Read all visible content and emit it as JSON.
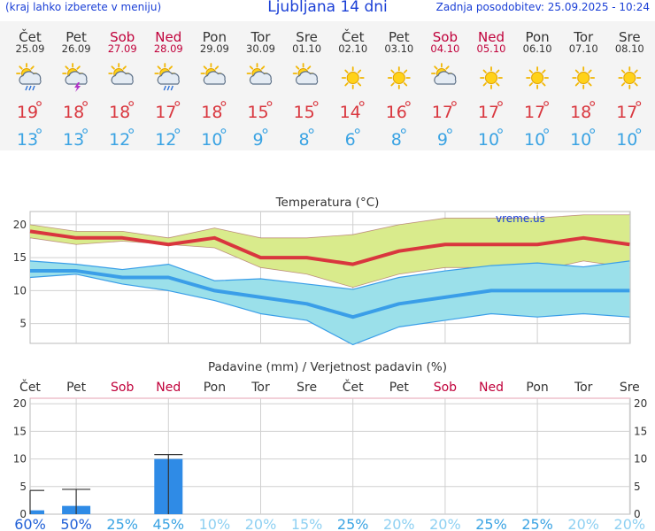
{
  "header": {
    "menu_note": "(kraj lahko izberete v meniju)",
    "title": "Ljubljana 14 dni",
    "updated": "Zadnja posodobitev: 25.09.2025 - 10:24"
  },
  "days": [
    {
      "name": "Čet",
      "date": "25.09",
      "weekend": false,
      "icon": "sun-cloud-rain-icon",
      "max": "19",
      "min": "13"
    },
    {
      "name": "Pet",
      "date": "26.09",
      "weekend": false,
      "icon": "sun-cloud-storm-icon",
      "max": "18",
      "min": "13"
    },
    {
      "name": "Sob",
      "date": "27.09",
      "weekend": true,
      "icon": "sun-cloud-icon",
      "max": "18",
      "min": "12"
    },
    {
      "name": "Ned",
      "date": "28.09",
      "weekend": true,
      "icon": "sun-cloud-rain-icon",
      "max": "17",
      "min": "12"
    },
    {
      "name": "Pon",
      "date": "29.09",
      "weekend": false,
      "icon": "sun-cloud-icon",
      "max": "18",
      "min": "10"
    },
    {
      "name": "Tor",
      "date": "30.09",
      "weekend": false,
      "icon": "sun-cloud-icon",
      "max": "15",
      "min": "9"
    },
    {
      "name": "Sre",
      "date": "01.10",
      "weekend": false,
      "icon": "sun-cloud-icon",
      "max": "15",
      "min": "8"
    },
    {
      "name": "Čet",
      "date": "02.10",
      "weekend": false,
      "icon": "sun-icon",
      "max": "14",
      "min": "6"
    },
    {
      "name": "Pet",
      "date": "03.10",
      "weekend": false,
      "icon": "sun-icon",
      "max": "16",
      "min": "8"
    },
    {
      "name": "Sob",
      "date": "04.10",
      "weekend": true,
      "icon": "sun-cloud-icon",
      "max": "17",
      "min": "9"
    },
    {
      "name": "Ned",
      "date": "05.10",
      "weekend": true,
      "icon": "sun-icon",
      "max": "17",
      "min": "10"
    },
    {
      "name": "Pon",
      "date": "06.10",
      "weekend": false,
      "icon": "sun-icon",
      "max": "17",
      "min": "10"
    },
    {
      "name": "Tor",
      "date": "07.10",
      "weekend": false,
      "icon": "sun-icon",
      "max": "18",
      "min": "10"
    },
    {
      "name": "Sre",
      "date": "08.10",
      "weekend": false,
      "icon": "sun-icon",
      "max": "17",
      "min": "10"
    }
  ],
  "chart_data": [
    {
      "type": "line",
      "title": "Temperatura (°C)",
      "watermark": "vreme.us",
      "x": [
        "25.09",
        "26.09",
        "27.09",
        "28.09",
        "29.09",
        "30.09",
        "01.10",
        "02.10",
        "03.10",
        "04.10",
        "05.10",
        "06.10",
        "07.10",
        "08.10"
      ],
      "ylim": [
        2,
        22
      ],
      "yticks": [
        5,
        10,
        15,
        20
      ],
      "grid": true,
      "series": [
        {
          "key": "max",
          "values": [
            19,
            18,
            18,
            17,
            18,
            15,
            15,
            14,
            16,
            17,
            17,
            17,
            18,
            17
          ],
          "color": "#d9363e"
        },
        {
          "key": "max_upper",
          "values": [
            20,
            19,
            19,
            18,
            19.5,
            18,
            18,
            18.5,
            20,
            21,
            21,
            21,
            21.5,
            21.5
          ],
          "color": "#a05050"
        },
        {
          "key": "max_lower",
          "values": [
            18,
            17,
            17.5,
            17,
            16.5,
            13.5,
            12.5,
            10.5,
            12.5,
            13.5,
            13.5,
            13,
            14.5,
            13.5
          ],
          "color": "#a05050"
        },
        {
          "key": "min",
          "values": [
            13,
            13,
            12,
            12,
            10,
            9,
            8,
            6,
            8,
            9,
            10,
            10,
            10,
            10
          ],
          "color": "#3a9ee8"
        },
        {
          "key": "min_upper",
          "values": [
            14.5,
            14,
            13.2,
            14,
            11.5,
            11.8,
            11,
            10.2,
            12,
            13,
            13.8,
            14.2,
            13.6,
            14.5
          ],
          "color": "#3a9ee8"
        },
        {
          "key": "min_lower",
          "values": [
            12,
            12.5,
            11,
            10,
            8.5,
            6.5,
            5.5,
            1.8,
            4.5,
            5.5,
            6.5,
            6,
            6.5,
            6
          ],
          "color": "#3a9ee8"
        }
      ],
      "colors": {
        "max_band": "#d9eb8c",
        "min_band": "#9be0ea",
        "overlap": "#a9dca6"
      }
    },
    {
      "type": "bar",
      "title": "Padavine (mm) / Verjetnost padavin (%)",
      "categories": [
        "Čet",
        "Pet",
        "Sob",
        "Ned",
        "Pon",
        "Tor",
        "Sre",
        "Čet",
        "Pet",
        "Sob",
        "Ned",
        "Pon",
        "Tor",
        "Sre"
      ],
      "weekend": [
        false,
        false,
        true,
        true,
        false,
        false,
        false,
        false,
        false,
        true,
        true,
        false,
        false,
        false
      ],
      "values": [
        0.7,
        1.5,
        0,
        10,
        0,
        0,
        0,
        0,
        0,
        0,
        0,
        0,
        0,
        0
      ],
      "error_max": [
        4.3,
        4.5,
        0,
        10.8,
        0,
        0,
        0,
        0,
        0,
        0,
        0,
        0,
        0,
        0
      ],
      "probability": [
        "60%",
        "50%",
        "25%",
        "45%",
        "10%",
        "20%",
        "15%",
        "25%",
        "20%",
        "20%",
        "25%",
        "25%",
        "20%",
        "20%"
      ],
      "probability_values": [
        60,
        50,
        25,
        45,
        10,
        20,
        15,
        25,
        20,
        20,
        25,
        25,
        20,
        20
      ],
      "ylim": [
        0,
        21
      ],
      "yticks": [
        0,
        5,
        10,
        15,
        20
      ],
      "bar_color": "#2f8be6"
    }
  ]
}
